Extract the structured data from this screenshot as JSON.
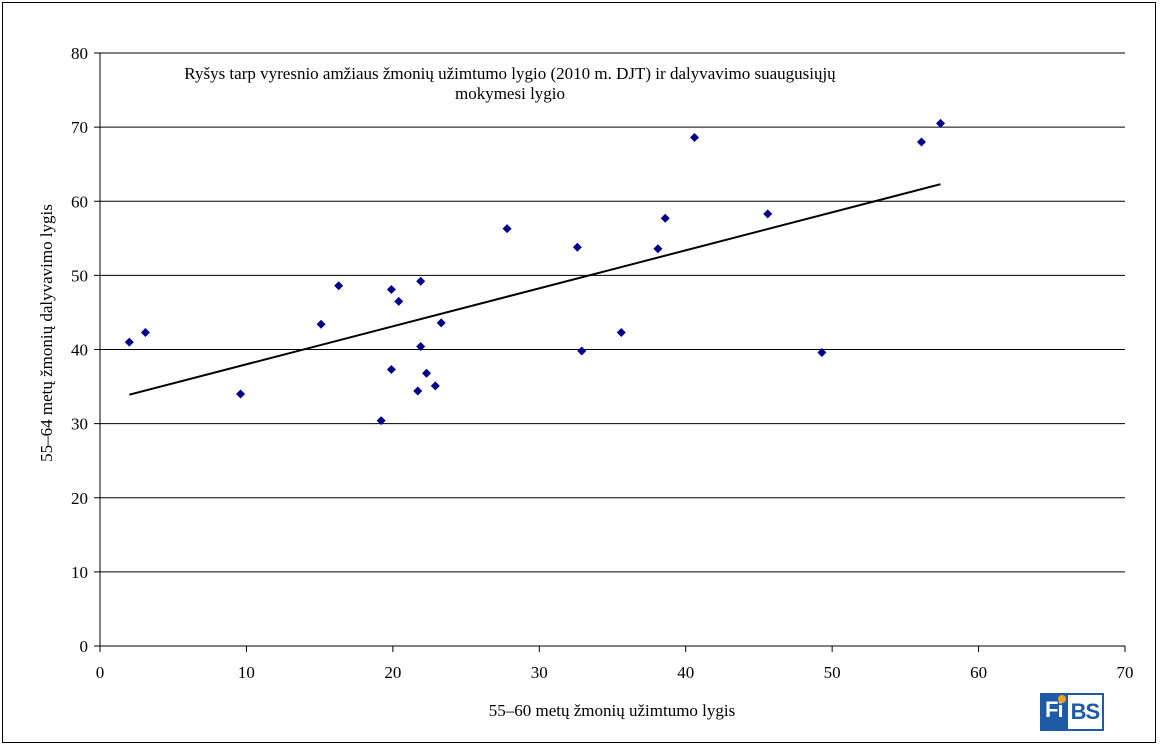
{
  "chart_data": {
    "type": "scatter",
    "title": "Ryšys tarp vyresnio amžiaus žmonių užimtumo lygio (2010 m. DJT) ir dalyvavimo suaugusiųjų mokymesi lygio",
    "xlabel": "55–60 metų žmonių užimtumo lygis",
    "ylabel": "55–64 metų žmonių dalyvavimo lygis",
    "xlim": [
      0,
      70
    ],
    "ylim": [
      0,
      80
    ],
    "xticks": [
      0,
      10,
      20,
      30,
      40,
      50,
      60,
      70
    ],
    "yticks": [
      0,
      10,
      20,
      30,
      40,
      50,
      60,
      70,
      80
    ],
    "grid": "horizontal",
    "points": [
      {
        "x": 2.0,
        "y": 41.0
      },
      {
        "x": 3.1,
        "y": 42.3
      },
      {
        "x": 9.6,
        "y": 34.0
      },
      {
        "x": 15.1,
        "y": 43.4
      },
      {
        "x": 16.3,
        "y": 48.6
      },
      {
        "x": 19.2,
        "y": 30.4
      },
      {
        "x": 19.9,
        "y": 48.1
      },
      {
        "x": 19.9,
        "y": 37.3
      },
      {
        "x": 20.4,
        "y": 46.5
      },
      {
        "x": 21.7,
        "y": 34.4
      },
      {
        "x": 21.9,
        "y": 49.2
      },
      {
        "x": 21.9,
        "y": 40.4
      },
      {
        "x": 22.3,
        "y": 36.8
      },
      {
        "x": 22.9,
        "y": 35.1
      },
      {
        "x": 23.3,
        "y": 43.6
      },
      {
        "x": 27.8,
        "y": 56.3
      },
      {
        "x": 32.6,
        "y": 53.8
      },
      {
        "x": 32.9,
        "y": 39.8
      },
      {
        "x": 35.6,
        "y": 42.3
      },
      {
        "x": 38.1,
        "y": 53.6
      },
      {
        "x": 38.6,
        "y": 57.7
      },
      {
        "x": 40.6,
        "y": 68.6
      },
      {
        "x": 45.6,
        "y": 58.3
      },
      {
        "x": 49.3,
        "y": 39.6
      },
      {
        "x": 56.1,
        "y": 68.0
      },
      {
        "x": 57.4,
        "y": 70.5
      }
    ],
    "trendline": {
      "x1": 2.0,
      "y1": 33.9,
      "x2": 57.4,
      "y2": 62.3
    },
    "colors": {
      "marker": "#00008B",
      "trendline": "#000000",
      "grid": "#000000"
    }
  },
  "logo": {
    "part1": "Fi",
    "part2": "BS"
  }
}
